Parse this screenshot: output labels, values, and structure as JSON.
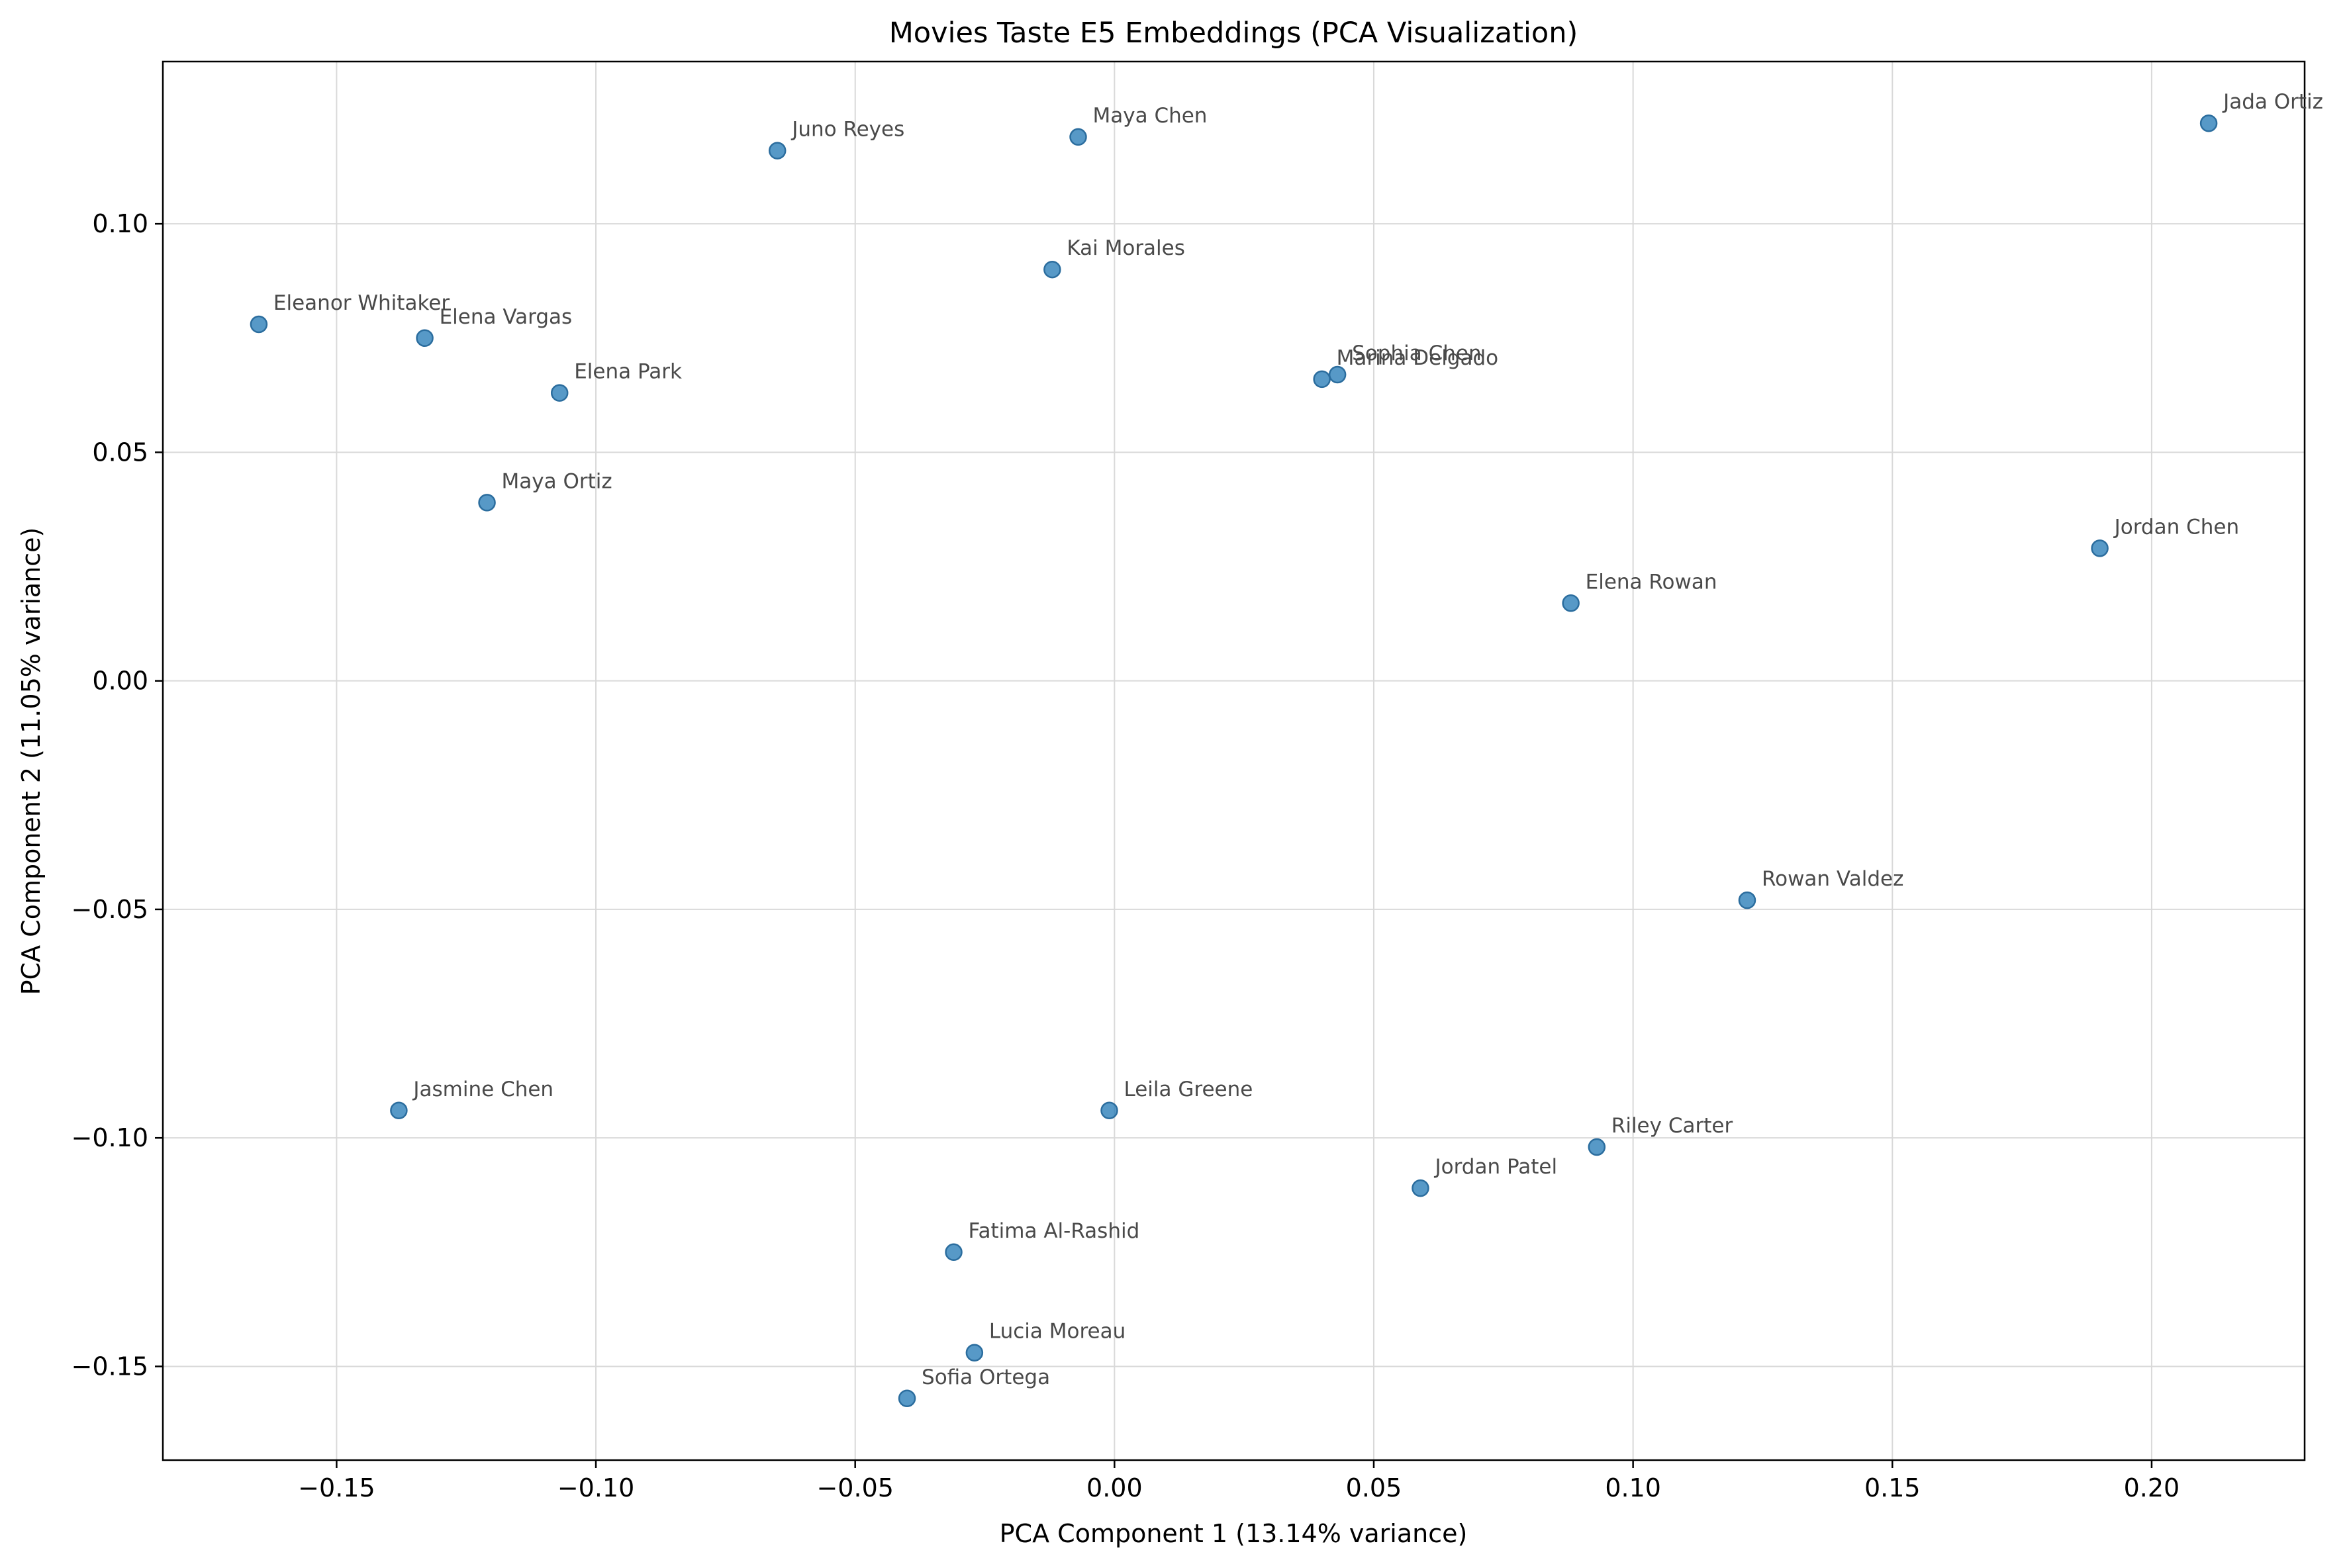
{
  "chart_data": {
    "type": "scatter",
    "title": "Movies Taste E5 Embeddings (PCA Visualization)",
    "xlabel": "PCA Component 1 (13.14% variance)",
    "ylabel": "PCA Component 2 (11.05% variance)",
    "xlim": [
      -0.1835,
      0.2295
    ],
    "ylim": [
      -0.1705,
      0.1355
    ],
    "grid": true,
    "xticks": [
      -0.15,
      -0.1,
      -0.05,
      0.0,
      0.05,
      0.1,
      0.15,
      0.2
    ],
    "xtick_labels": [
      "−0.15",
      "−0.10",
      "−0.05",
      "0.00",
      "0.05",
      "0.10",
      "0.15",
      "0.20"
    ],
    "yticks": [
      -0.15,
      -0.1,
      -0.05,
      0.0,
      0.05,
      0.1
    ],
    "ytick_labels": [
      "−0.15",
      "−0.10",
      "−0.05",
      "0.00",
      "0.05",
      "0.10"
    ],
    "point_color": "#1f77b4",
    "point_edge_color": "#2b6d9e",
    "label_color": "#4a4a4a",
    "points": [
      {
        "label": "Jada Ortiz",
        "x": 0.211,
        "y": 0.122
      },
      {
        "label": "Maya Chen",
        "x": -0.007,
        "y": 0.119
      },
      {
        "label": "Juno Reyes",
        "x": -0.065,
        "y": 0.116
      },
      {
        "label": "Kai Morales",
        "x": -0.012,
        "y": 0.09
      },
      {
        "label": "Eleanor Whitaker",
        "x": -0.165,
        "y": 0.078
      },
      {
        "label": "Elena Vargas",
        "x": -0.133,
        "y": 0.075
      },
      {
        "label": "Sophia Chen",
        "x": 0.043,
        "y": 0.067
      },
      {
        "label": "Marina Delgado",
        "x": 0.04,
        "y": 0.066
      },
      {
        "label": "Elena Park",
        "x": -0.107,
        "y": 0.063
      },
      {
        "label": "Maya Ortiz",
        "x": -0.121,
        "y": 0.039
      },
      {
        "label": "Jordan Chen",
        "x": 0.19,
        "y": 0.029
      },
      {
        "label": "Elena Rowan",
        "x": 0.088,
        "y": 0.017
      },
      {
        "label": "Rowan Valdez",
        "x": 0.122,
        "y": -0.048
      },
      {
        "label": "Jasmine Chen",
        "x": -0.138,
        "y": -0.094
      },
      {
        "label": "Leila Greene",
        "x": -0.001,
        "y": -0.094
      },
      {
        "label": "Riley Carter",
        "x": 0.093,
        "y": -0.102
      },
      {
        "label": "Jordan Patel",
        "x": 0.059,
        "y": -0.111
      },
      {
        "label": "Fatima Al-Rashid",
        "x": -0.031,
        "y": -0.125
      },
      {
        "label": "Lucia Moreau",
        "x": -0.027,
        "y": -0.147
      },
      {
        "label": "Sofia Ortega",
        "x": -0.04,
        "y": -0.157
      }
    ]
  }
}
